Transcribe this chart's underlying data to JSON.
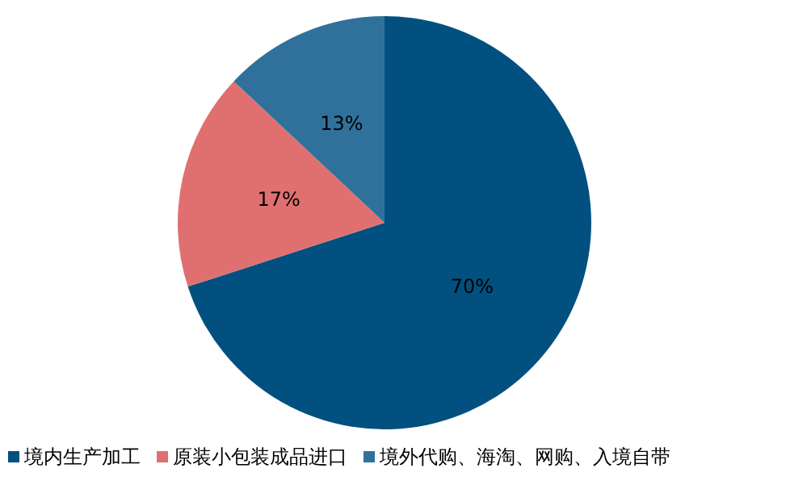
{
  "chart_data": {
    "type": "pie",
    "categories": [
      "境内生产加工",
      "原装小包装成品进口",
      "境外代购、海淘、网购、入境自带"
    ],
    "values": [
      70,
      17,
      13
    ],
    "colors": [
      "#02507f",
      "#e07070",
      "#30719b"
    ],
    "value_labels": [
      "70%",
      "17%",
      "13%"
    ],
    "legend": "bottom"
  }
}
